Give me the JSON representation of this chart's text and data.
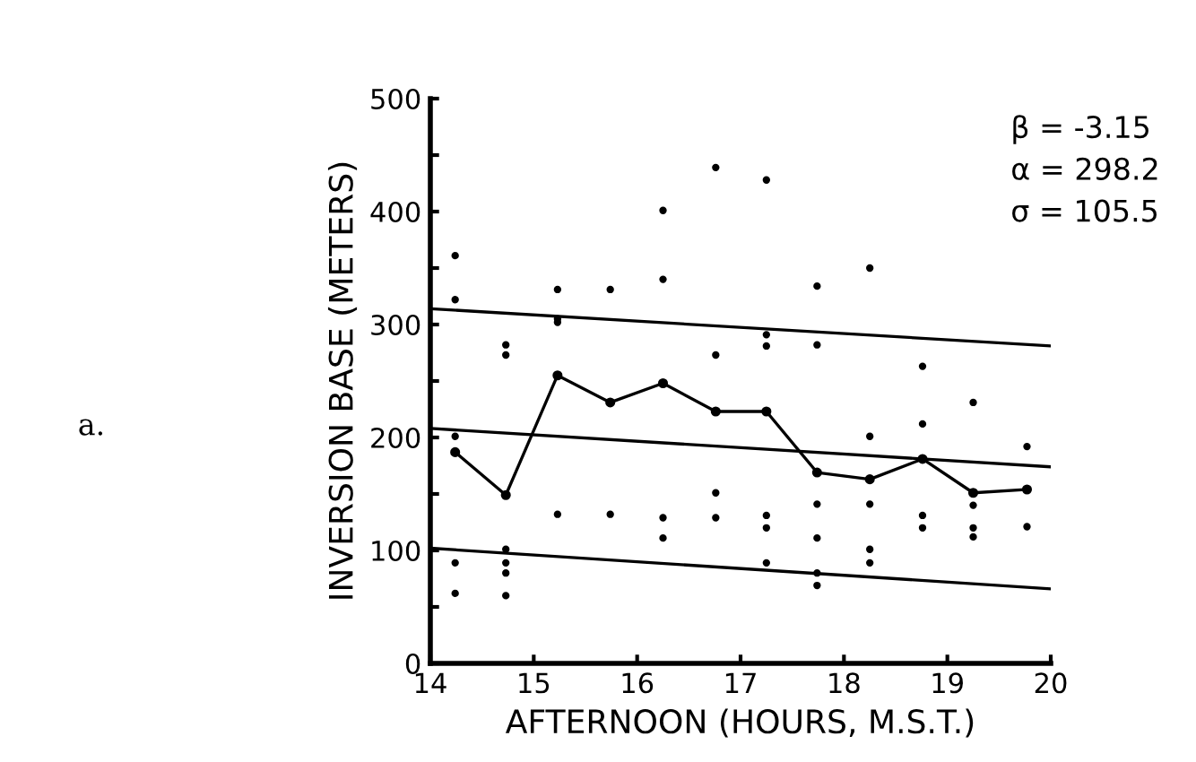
{
  "chart_data": {
    "type": "scatter",
    "xlabel": "AFTERNOON (HOURS, M.S.T.)",
    "ylabel": "INVERSION BASE (METERS)",
    "xlim": [
      14,
      20
    ],
    "xticks": [
      14,
      15,
      16,
      17,
      18,
      19,
      20
    ],
    "ylim": [
      0,
      500
    ],
    "yticks": [
      0,
      {
        "value": 50,
        "label": null
      },
      100,
      {
        "value": 150,
        "label": null
      },
      200,
      {
        "value": 250,
        "label": null
      },
      300,
      {
        "value": 350,
        "label": null
      },
      400,
      {
        "value": 450,
        "label": null
      },
      500
    ],
    "grid": false,
    "legend": false,
    "marker": "circle",
    "annotations": [
      "β = -3.15",
      "α = 298.2",
      "σ = 105.5",
      "a."
    ],
    "series": [
      {
        "color": "#000000",
        "x": [
          14.24,
          14.24,
          14.24,
          14.24,
          14.24,
          14.73,
          14.73,
          14.73,
          14.73,
          14.73,
          14.73,
          15.23,
          15.23,
          15.23,
          15.23,
          15.74,
          15.74,
          16.25,
          16.25,
          16.25,
          16.25,
          16.76,
          16.76,
          16.76,
          16.76,
          17.25,
          17.25,
          17.25,
          17.25,
          17.25,
          17.25,
          17.74,
          17.74,
          17.74,
          17.74,
          17.74,
          17.74,
          18.25,
          18.25,
          18.25,
          18.25,
          18.25,
          18.76,
          18.76,
          18.76,
          18.76,
          19.25,
          19.25,
          19.25,
          19.25,
          19.77,
          19.77
        ],
        "values": [
          361,
          322,
          201,
          89,
          62,
          282,
          273,
          101,
          89,
          80,
          60,
          331,
          305,
          302,
          132,
          331,
          132,
          401,
          340,
          129,
          111,
          439,
          273,
          151,
          129,
          428,
          291,
          281,
          131,
          120,
          89,
          334,
          282,
          141,
          111,
          80,
          69,
          350,
          201,
          141,
          101,
          89,
          263,
          212,
          131,
          120,
          231,
          140,
          120,
          112,
          192,
          121
        ]
      },
      {
        "type": "line",
        "color": "#000000",
        "marker": "circle",
        "x": [
          14.24,
          14.73,
          15.23,
          15.74,
          16.25,
          16.76,
          17.25,
          17.74,
          18.25,
          18.76,
          19.25,
          19.77
        ],
        "values": [
          187,
          149,
          255,
          231,
          248,
          223,
          223,
          169,
          163,
          181,
          151,
          154
        ]
      },
      {
        "type": "line",
        "color": "#000000",
        "marker": "none",
        "x": [
          14,
          20
        ],
        "values": [
          314,
          281
        ]
      },
      {
        "type": "line",
        "color": "#000000",
        "marker": "none",
        "x": [
          14,
          20
        ],
        "values": [
          208,
          174
        ]
      },
      {
        "type": "line",
        "color": "#000000",
        "marker": "none",
        "x": [
          14,
          20
        ],
        "values": [
          102,
          66
        ]
      }
    ]
  }
}
